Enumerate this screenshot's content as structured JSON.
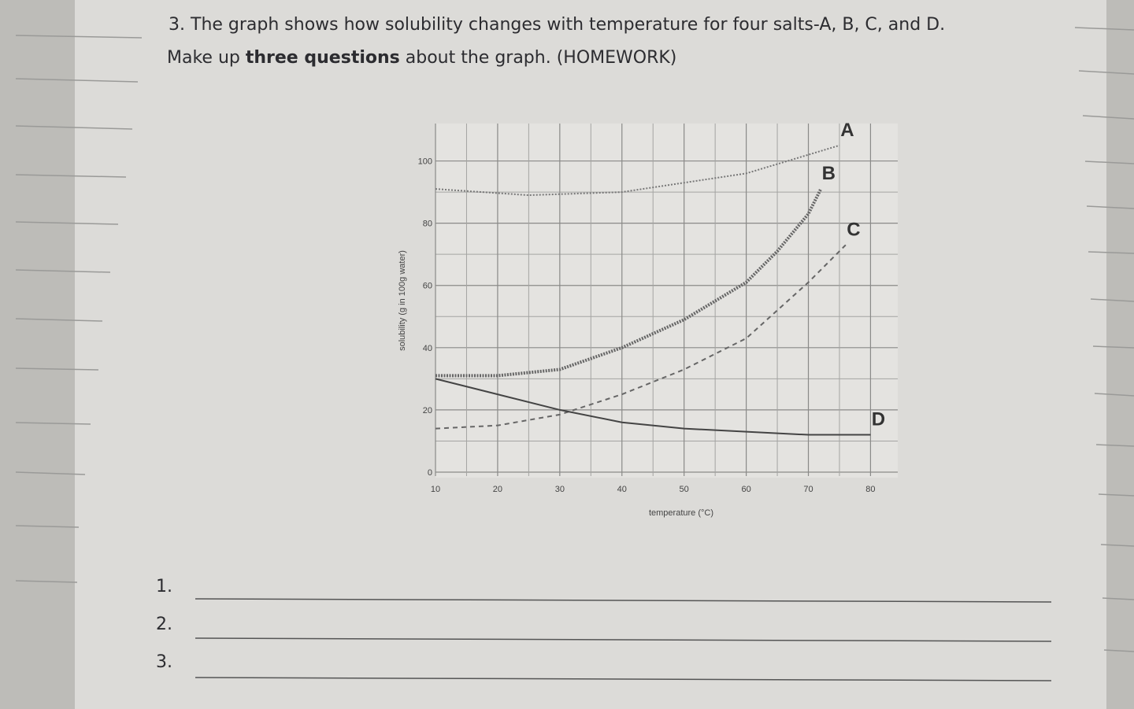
{
  "question": {
    "number": "3.",
    "line1": "The graph shows how solubility changes with temperature for four salts-A, B, C, and D.",
    "line2_start": "Make up",
    "line2_bold": "three questions",
    "line2_end": "about the graph. (HOMEWORK)"
  },
  "chart_data": {
    "type": "line",
    "x_label": "temperature (°C)",
    "y_label": "solubility (g in 100g water)",
    "xlim": [
      10,
      84
    ],
    "ylim": [
      0,
      110
    ],
    "xticks": [
      10,
      20,
      30,
      40,
      50,
      60,
      70,
      80
    ],
    "yticks": [
      0,
      20,
      40,
      60,
      80,
      100
    ],
    "grid": true,
    "series": [
      {
        "name": "A",
        "color": "#777",
        "dash": "2 2",
        "width": 2,
        "x": [
          10,
          25,
          40,
          50,
          60,
          70,
          75
        ],
        "values": [
          91,
          89,
          90,
          93,
          96,
          102,
          105
        ]
      },
      {
        "name": "B",
        "color": "#666",
        "dash": "2 1.5",
        "width": 4,
        "x": [
          10,
          20,
          30,
          40,
          50,
          60,
          65,
          70,
          72
        ],
        "values": [
          31,
          31,
          33,
          40,
          49,
          61,
          71,
          83,
          91
        ]
      },
      {
        "name": "C",
        "color": "#666",
        "dash": "6 5",
        "width": 2,
        "x": [
          10,
          20,
          30,
          40,
          50,
          60,
          70,
          76
        ],
        "values": [
          14,
          15,
          18.5,
          25,
          33,
          43,
          61,
          73
        ]
      },
      {
        "name": "D",
        "color": "#444",
        "dash": "",
        "width": 2,
        "x": [
          10,
          20,
          30,
          40,
          50,
          60,
          70,
          80
        ],
        "values": [
          30,
          25,
          20,
          16,
          14,
          13,
          12,
          12
        ]
      }
    ]
  },
  "answers": [
    "1.",
    "2.",
    "3."
  ]
}
